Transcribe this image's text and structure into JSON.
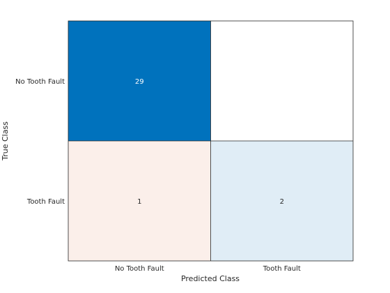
{
  "chart_data": {
    "type": "heatmap",
    "chart_kind": "confusion-matrix",
    "title": "",
    "xlabel": "Predicted Class",
    "ylabel": "True Class",
    "row_labels": [
      "No Tooth Fault",
      "Tooth Fault"
    ],
    "col_labels": [
      "No Tooth Fault",
      "Tooth Fault"
    ],
    "cells": [
      [
        {
          "value": 29,
          "label": "29",
          "fill": "#0072bd"
        },
        {
          "value": 0,
          "label": "",
          "fill": "#ffffff"
        }
      ],
      [
        {
          "value": 1,
          "label": "1",
          "fill": "#fbefea"
        },
        {
          "value": 2,
          "label": "2",
          "fill": "#e0edf6"
        }
      ]
    ],
    "colors": {
      "correct_max": "#0072bd",
      "incorrect_max": "#d95319",
      "empty": "#ffffff",
      "text_on_dark": "#ffffff",
      "text_on_light": "#262626",
      "grid_lines": "#262626"
    },
    "grid": false,
    "legend": "none"
  }
}
